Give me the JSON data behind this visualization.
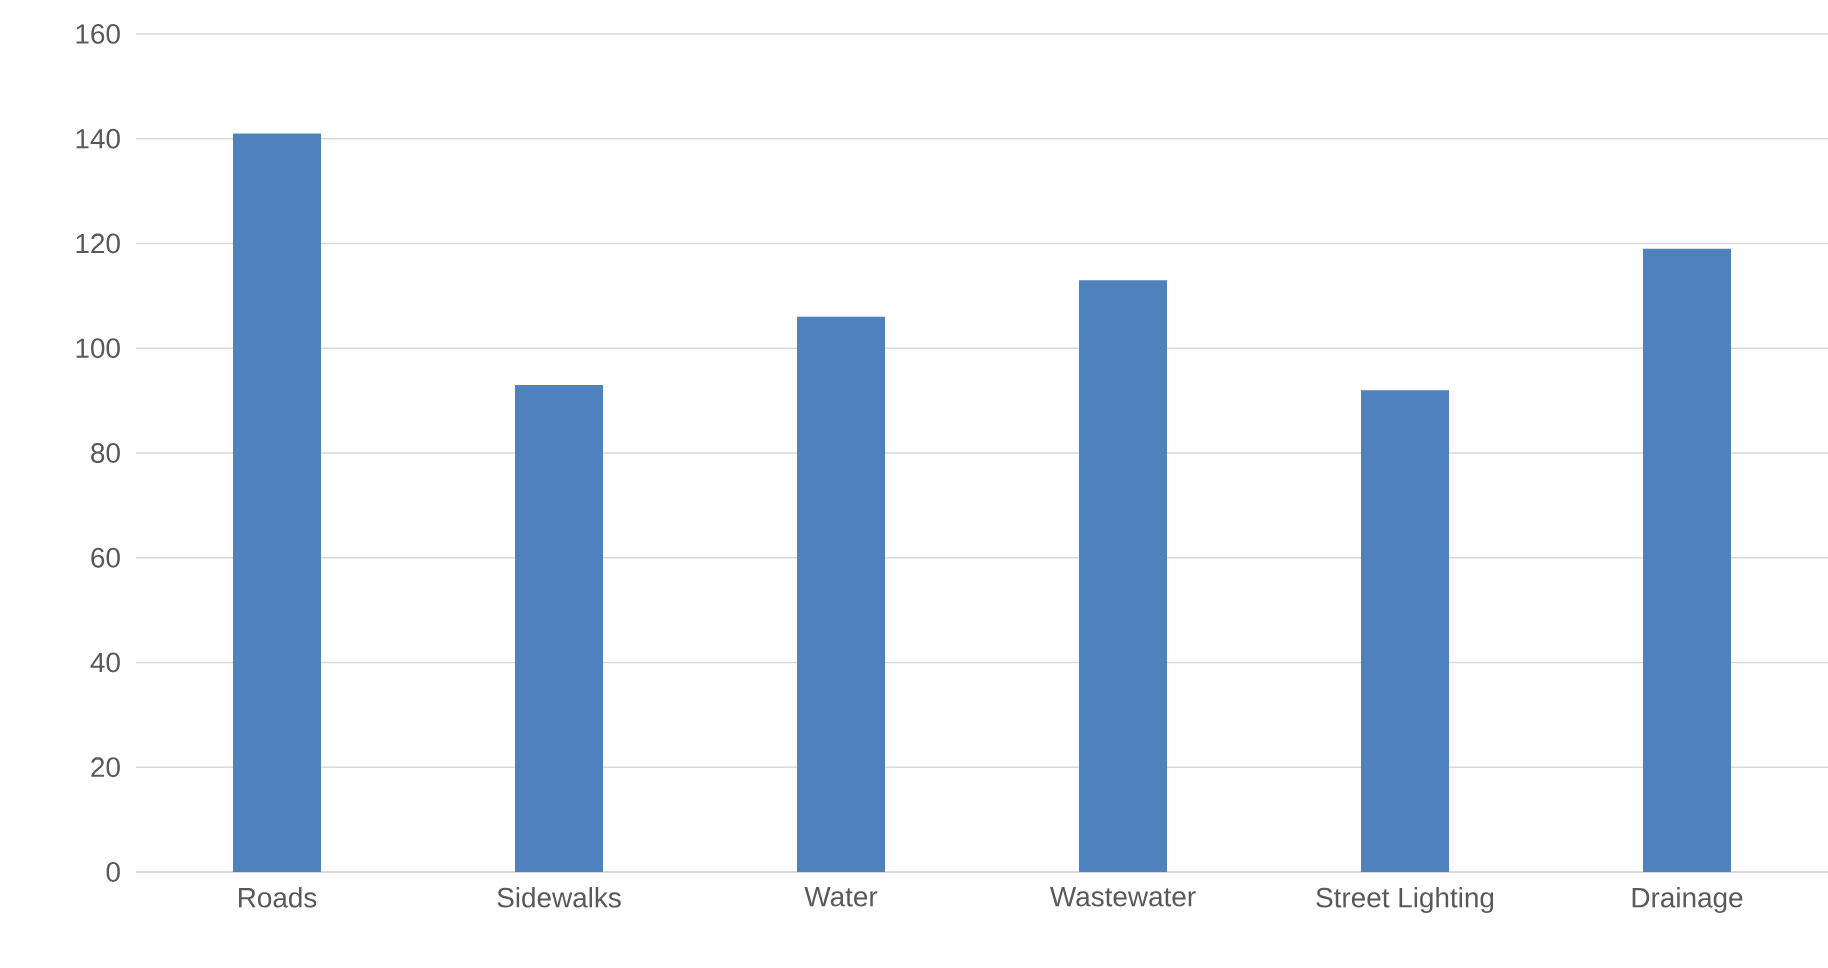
{
  "chart_data": {
    "type": "bar",
    "categories": [
      "Roads",
      "Sidewalks",
      "Water",
      "Wastewater",
      "Street Lighting",
      "Drainage"
    ],
    "values": [
      141,
      93,
      106,
      113,
      92,
      119
    ],
    "color": "#4f81bd",
    "ylim": [
      0,
      160
    ],
    "yticks": [
      0,
      20,
      40,
      60,
      80,
      100,
      120,
      140,
      160
    ],
    "grid": "y"
  }
}
